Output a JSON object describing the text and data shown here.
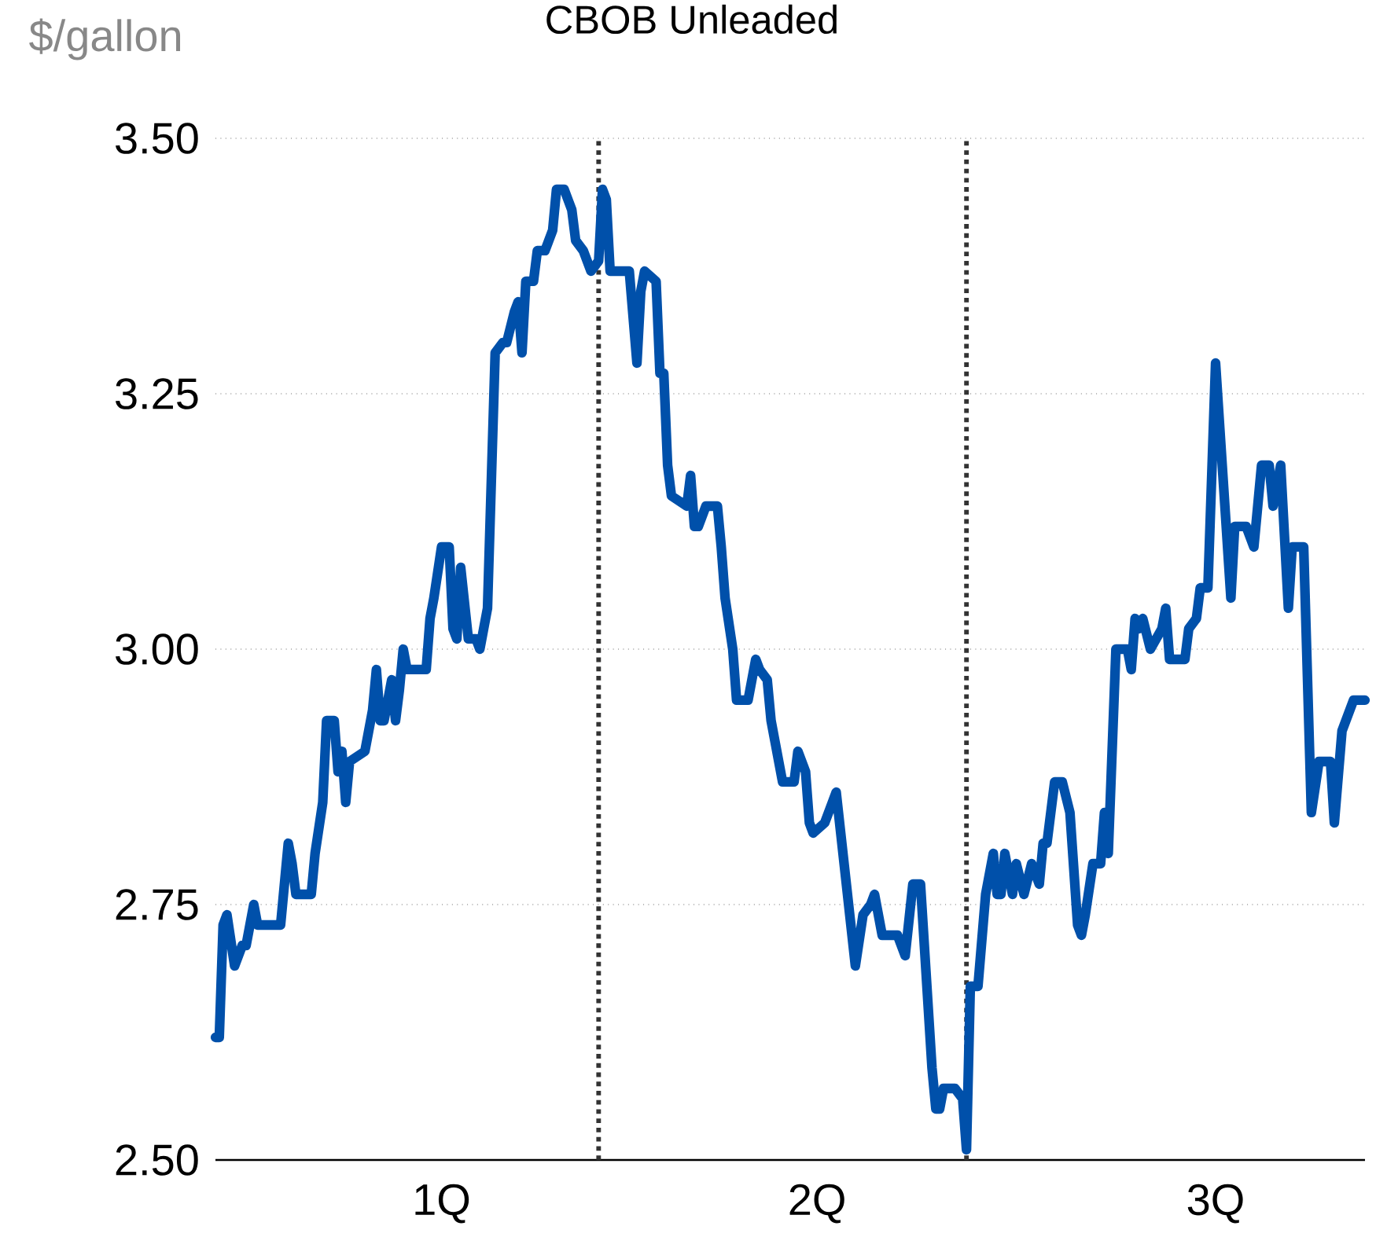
{
  "chart_data": {
    "type": "line",
    "title": "CBOB Unleaded",
    "ylabel": "$/gallon",
    "xlim": [
      0,
      3
    ],
    "xticks": [
      {
        "value": 0.59,
        "label": "1Q"
      },
      {
        "value": 1.57,
        "label": "2Q"
      },
      {
        "value": 2.61,
        "label": "3Q"
      }
    ],
    "ylim": [
      2.5,
      3.5
    ],
    "yticks": [
      {
        "value": 2.5,
        "label": "2.50"
      },
      {
        "value": 2.75,
        "label": "2.75"
      },
      {
        "value": 3.0,
        "label": "3.00"
      },
      {
        "value": 3.25,
        "label": "3.25"
      },
      {
        "value": 3.5,
        "label": "3.50"
      }
    ],
    "grid": "y",
    "line_style": "solid",
    "ref_lines": [
      {
        "axis": "x",
        "value": 1.0,
        "color": "#333333",
        "line_style": "dotted"
      },
      {
        "axis": "x",
        "value": 1.96,
        "color": "#333333",
        "line_style": "dotted"
      }
    ],
    "x": [
      0,
      0.01,
      0.02,
      0.03,
      0.05,
      0.07,
      0.08,
      0.1,
      0.11,
      0.14,
      0.17,
      0.18,
      0.19,
      0.2,
      0.21,
      0.25,
      0.26,
      0.28,
      0.29,
      0.31,
      0.32,
      0.33,
      0.34,
      0.35,
      0.39,
      0.41,
      0.42,
      0.43,
      0.44,
      0.46,
      0.47,
      0.48,
      0.49,
      0.5,
      0.55,
      0.56,
      0.57,
      0.59,
      0.61,
      0.62,
      0.63,
      0.64,
      0.66,
      0.68,
      0.69,
      0.71,
      0.73,
      0.75,
      0.76,
      0.78,
      0.79,
      0.8,
      0.81,
      0.83,
      0.84,
      0.86,
      0.88,
      0.89,
      0.91,
      0.93,
      0.94,
      0.96,
      0.98,
      1.0,
      1.01,
      1.02,
      1.03,
      1.06,
      1.08,
      1.1,
      1.11,
      1.12,
      1.15,
      1.16,
      1.17,
      1.18,
      1.19,
      1.23,
      1.24,
      1.25,
      1.26,
      1.28,
      1.31,
      1.32,
      1.33,
      1.35,
      1.36,
      1.39,
      1.41,
      1.42,
      1.44,
      1.45,
      1.46,
      1.48,
      1.51,
      1.52,
      1.54,
      1.55,
      1.56,
      1.59,
      1.62,
      1.67,
      1.69,
      1.71,
      1.72,
      1.74,
      1.78,
      1.8,
      1.82,
      1.84,
      1.85,
      1.87,
      1.88,
      1.89,
      1.9,
      1.93,
      1.95,
      1.96,
      1.97,
      1.99,
      2.01,
      2.03,
      2.04,
      2.05,
      2.06,
      2.08,
      2.09,
      2.11,
      2.13,
      2.15,
      2.16,
      2.17,
      2.19,
      2.21,
      2.23,
      2.25,
      2.26,
      2.27,
      2.29,
      2.31,
      2.32,
      2.33,
      2.35,
      2.38,
      2.39,
      2.4,
      2.41,
      2.42,
      2.44,
      2.47,
      2.48,
      2.49,
      2.53,
      2.54,
      2.56,
      2.57,
      2.59,
      2.61,
      2.65,
      2.66,
      2.69,
      2.71,
      2.73,
      2.75,
      2.76,
      2.78,
      2.8,
      2.81,
      2.84,
      2.86,
      2.88,
      2.91,
      2.92,
      2.94,
      2.97,
      3.0
    ],
    "series": [
      {
        "color": "#0050aa",
        "values": [
          2.62,
          2.62,
          2.73,
          2.74,
          2.69,
          2.71,
          2.71,
          2.75,
          2.73,
          2.73,
          2.73,
          2.77,
          2.81,
          2.79,
          2.76,
          2.76,
          2.8,
          2.85,
          2.93,
          2.93,
          2.88,
          2.9,
          2.85,
          2.89,
          2.9,
          2.94,
          2.98,
          2.93,
          2.93,
          2.97,
          2.93,
          2.96,
          3.0,
          2.98,
          2.98,
          3.03,
          3.05,
          3.1,
          3.1,
          3.02,
          3.01,
          3.08,
          3.01,
          3.01,
          3.0,
          3.04,
          3.29,
          3.3,
          3.3,
          3.33,
          3.34,
          3.29,
          3.36,
          3.36,
          3.39,
          3.39,
          3.41,
          3.45,
          3.45,
          3.43,
          3.4,
          3.39,
          3.37,
          3.38,
          3.45,
          3.44,
          3.37,
          3.37,
          3.37,
          3.28,
          3.35,
          3.37,
          3.36,
          3.27,
          3.27,
          3.18,
          3.15,
          3.14,
          3.17,
          3.12,
          3.12,
          3.14,
          3.14,
          3.1,
          3.05,
          3.0,
          2.95,
          2.95,
          2.99,
          2.98,
          2.97,
          2.93,
          2.91,
          2.87,
          2.87,
          2.9,
          2.88,
          2.83,
          2.82,
          2.83,
          2.86,
          2.69,
          2.74,
          2.75,
          2.76,
          2.72,
          2.72,
          2.7,
          2.77,
          2.77,
          2.71,
          2.59,
          2.55,
          2.55,
          2.57,
          2.57,
          2.56,
          2.51,
          2.67,
          2.67,
          2.76,
          2.8,
          2.76,
          2.76,
          2.8,
          2.76,
          2.79,
          2.76,
          2.79,
          2.77,
          2.81,
          2.81,
          2.87,
          2.87,
          2.84,
          2.73,
          2.72,
          2.74,
          2.79,
          2.79,
          2.84,
          2.8,
          3.0,
          3.0,
          2.98,
          3.03,
          3.02,
          3.03,
          3.0,
          3.02,
          3.04,
          2.99,
          2.99,
          3.02,
          3.03,
          3.06,
          3.06,
          3.28,
          3.05,
          3.12,
          3.12,
          3.1,
          3.18,
          3.18,
          3.14,
          3.18,
          3.04,
          3.1,
          3.1,
          2.84,
          2.89,
          2.89,
          2.83,
          2.92,
          2.95,
          2.95
        ]
      }
    ]
  }
}
